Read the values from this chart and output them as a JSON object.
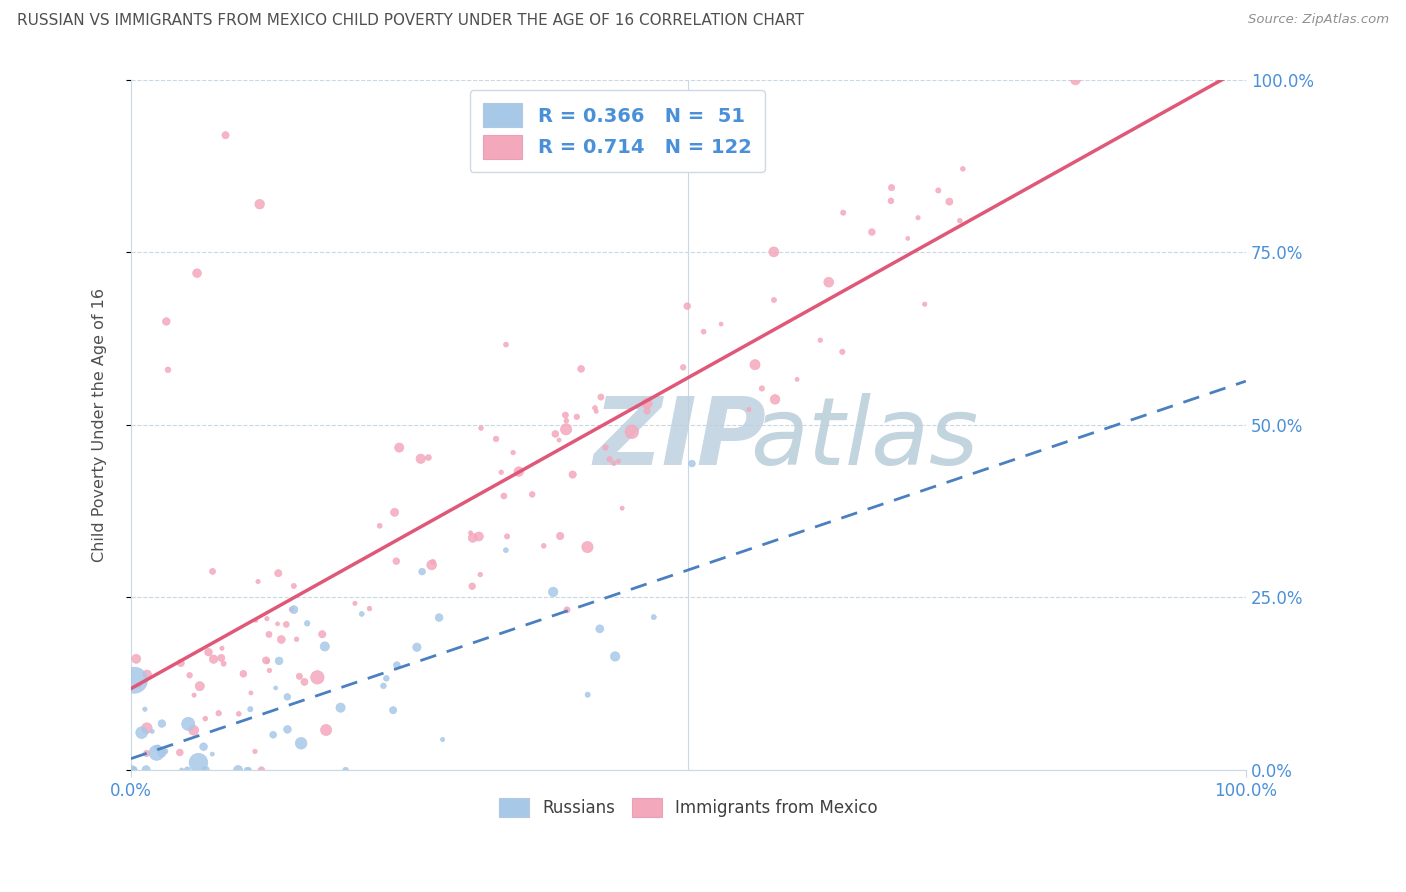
{
  "title": "RUSSIAN VS IMMIGRANTS FROM MEXICO CHILD POVERTY UNDER THE AGE OF 16 CORRELATION CHART",
  "source": "Source: ZipAtlas.com",
  "ylabel": "Child Poverty Under the Age of 16",
  "russian_R": 0.366,
  "russian_N": 51,
  "mexican_R": 0.714,
  "mexican_N": 122,
  "russian_scatter_color": "#a8c8e8",
  "mexican_scatter_color": "#f4a8bc",
  "russian_line_color": "#4a7fc0",
  "mexican_line_color": "#e05878",
  "legend_text_color": "#4a90d9",
  "background_color": "#ffffff",
  "grid_color": "#c8d8e4",
  "title_color": "#505050",
  "axis_tick_color": "#4a90d9",
  "ytick_values": [
    0.0,
    0.25,
    0.5,
    0.75,
    1.0
  ],
  "ytick_labels": [
    "0.0%",
    "25.0%",
    "50.0%",
    "75.0%",
    "100.0%"
  ],
  "watermark_zip_color": "#bdd0e0",
  "watermark_atlas_color": "#b8cdd8"
}
